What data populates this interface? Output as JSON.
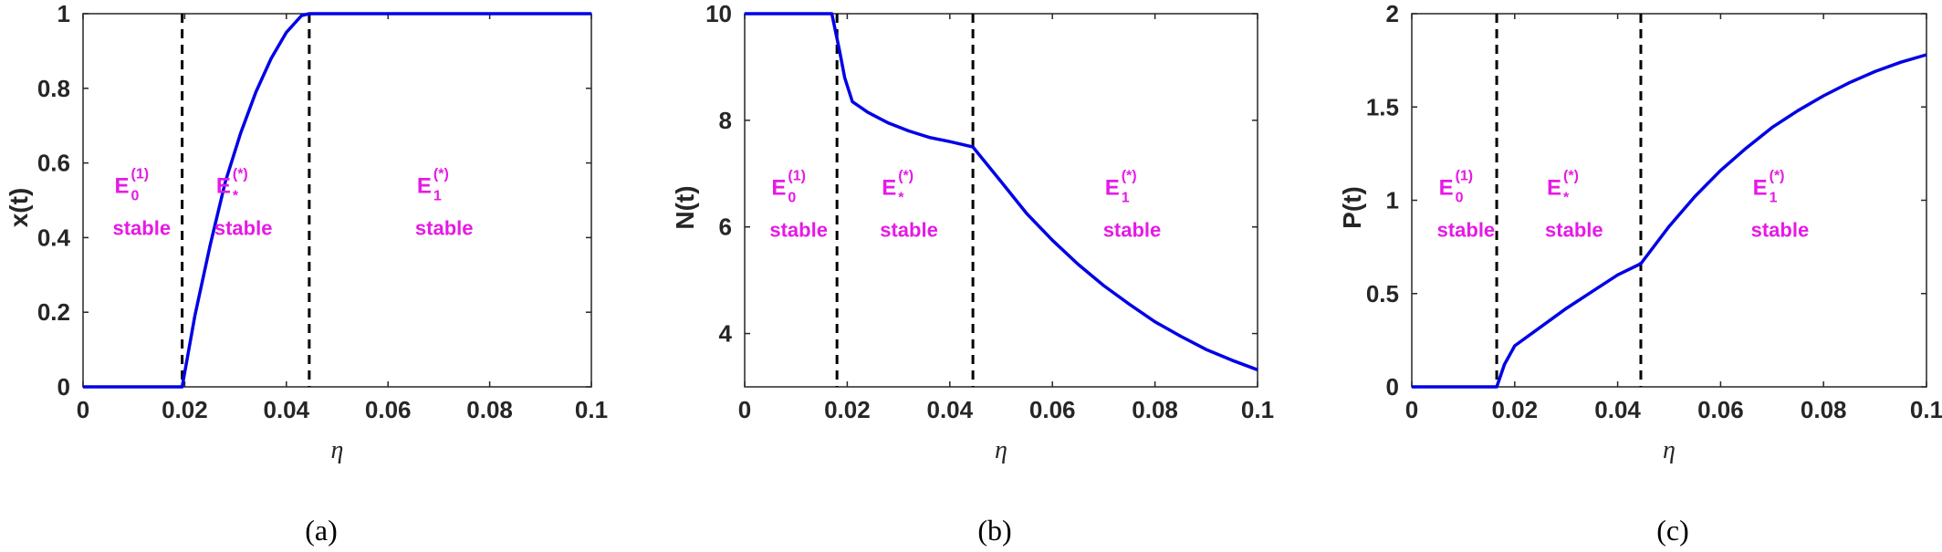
{
  "colors": {
    "curve": "#0000e6",
    "annotation": "#e619e6",
    "axis": "#262626",
    "dashed": "#000000"
  },
  "chart_data": [
    {
      "type": "line",
      "caption": "(a)",
      "xlabel": "η",
      "ylabel": "x(t)",
      "xlim": [
        0,
        0.1
      ],
      "ylim": [
        0,
        1
      ],
      "xticks": [
        0,
        0.02,
        0.04,
        0.06,
        0.08,
        0.1
      ],
      "xtick_labels": [
        "0",
        "0.02",
        "0.04",
        "0.06",
        "0.08",
        "0.1"
      ],
      "yticks": [
        0,
        0.2,
        0.4,
        0.6,
        0.8,
        1
      ],
      "ytick_labels": [
        "0",
        "0.2",
        "0.4",
        "0.6",
        "0.8",
        "1"
      ],
      "vlines": [
        0.0195,
        0.0445
      ],
      "series": [
        {
          "x": [
            0,
            0.0195,
            0.022,
            0.025,
            0.028,
            0.031,
            0.034,
            0.037,
            0.04,
            0.043,
            0.0445,
            0.05,
            0.06,
            0.07,
            0.08,
            0.09,
            0.1
          ],
          "y": [
            0,
            0,
            0.19,
            0.38,
            0.55,
            0.68,
            0.79,
            0.88,
            0.95,
            0.995,
            1.0,
            1.0,
            1.0,
            1.0,
            1.0,
            1.0,
            1.0
          ]
        }
      ],
      "regions": [
        {
          "base": "E",
          "sub": "0",
          "sup": "(1)",
          "label": "stable",
          "x": 0.0105
        },
        {
          "base": "E",
          "sub": "*",
          "sup": "(*)",
          "label": "stable",
          "x": 0.0305
        },
        {
          "base": "E",
          "sub": "1",
          "sup": "(*)",
          "label": "stable",
          "x": 0.07
        }
      ],
      "region_y": 0.52
    },
    {
      "type": "line",
      "caption": "(b)",
      "xlabel": "η",
      "ylabel": "N(t)",
      "xlim": [
        0,
        0.1
      ],
      "ylim": [
        3,
        10
      ],
      "xticks": [
        0,
        0.02,
        0.04,
        0.06,
        0.08,
        0.1
      ],
      "xtick_labels": [
        "0",
        "0.02",
        "0.04",
        "0.06",
        "0.08",
        "0.1"
      ],
      "yticks": [
        4,
        6,
        8,
        10
      ],
      "ytick_labels": [
        "4",
        "6",
        "8",
        "10"
      ],
      "vlines": [
        0.018,
        0.0445
      ],
      "series": [
        {
          "x": [
            0,
            0.017,
            0.0185,
            0.0195,
            0.021,
            0.024,
            0.028,
            0.032,
            0.036,
            0.04,
            0.0445,
            0.05,
            0.055,
            0.06,
            0.065,
            0.07,
            0.075,
            0.08,
            0.085,
            0.09,
            0.095,
            0.1
          ],
          "y": [
            10,
            10,
            9.3,
            8.8,
            8.35,
            8.15,
            7.95,
            7.8,
            7.68,
            7.6,
            7.5,
            6.85,
            6.25,
            5.75,
            5.3,
            4.9,
            4.55,
            4.22,
            3.95,
            3.7,
            3.5,
            3.32
          ]
        }
      ],
      "regions": [
        {
          "base": "E",
          "sub": "0",
          "sup": "(1)",
          "label": "stable",
          "x": 0.0095
        },
        {
          "base": "E",
          "sub": "*",
          "sup": "(*)",
          "label": "stable",
          "x": 0.031
        },
        {
          "base": "E",
          "sub": "1",
          "sup": "(*)",
          "label": "stable",
          "x": 0.0745
        }
      ],
      "region_y": 6.6
    },
    {
      "type": "line",
      "caption": "(c)",
      "xlabel": "η",
      "ylabel": "P(t)",
      "xlim": [
        0,
        0.1
      ],
      "ylim": [
        0,
        2
      ],
      "xticks": [
        0,
        0.02,
        0.04,
        0.06,
        0.08,
        0.1
      ],
      "xtick_labels": [
        "0",
        "0.02",
        "0.04",
        "0.06",
        "0.08",
        "0.1"
      ],
      "yticks": [
        0,
        0.5,
        1,
        1.5,
        2
      ],
      "ytick_labels": [
        "0",
        "0.5",
        "1",
        "1.5",
        "2"
      ],
      "vlines": [
        0.0165,
        0.0445
      ],
      "series": [
        {
          "x": [
            0,
            0.0165,
            0.018,
            0.02,
            0.025,
            0.03,
            0.035,
            0.04,
            0.0445,
            0.05,
            0.055,
            0.06,
            0.065,
            0.07,
            0.075,
            0.08,
            0.085,
            0.09,
            0.095,
            0.1
          ],
          "y": [
            0,
            0,
            0.12,
            0.22,
            0.32,
            0.42,
            0.51,
            0.6,
            0.66,
            0.86,
            1.02,
            1.16,
            1.28,
            1.39,
            1.48,
            1.56,
            1.63,
            1.69,
            1.74,
            1.78
          ]
        }
      ],
      "regions": [
        {
          "base": "E",
          "sub": "0",
          "sup": "(1)",
          "label": "stable",
          "x": 0.0095
        },
        {
          "base": "E",
          "sub": "*",
          "sup": "(*)",
          "label": "stable",
          "x": 0.0305
        },
        {
          "base": "E",
          "sub": "1",
          "sup": "(*)",
          "label": "stable",
          "x": 0.0705
        }
      ],
      "region_y": 1.03
    }
  ]
}
